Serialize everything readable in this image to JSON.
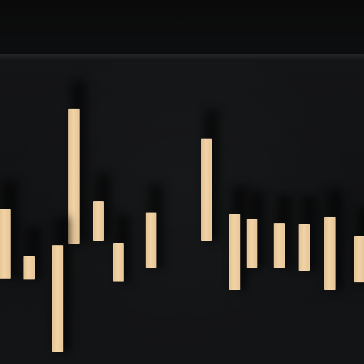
{
  "view": {
    "name": "waveform-bars-view",
    "background_color": "#121314",
    "bar_color": "#efd0a2"
  },
  "bars": [
    {
      "id": "bar-1",
      "top": 0.77,
      "bottom": -0.86
    },
    {
      "id": "bar-2",
      "top": -0.34,
      "bottom": -0.88
    },
    {
      "id": "bar-3",
      "top": 3.12,
      "bottom": -0.05
    },
    {
      "id": "bar-4",
      "top": -0.08,
      "bottom": -2.58
    },
    {
      "id": "bar-5",
      "top": 0.95,
      "bottom": 0.02
    },
    {
      "id": "bar-6",
      "top": -0.04,
      "bottom": -0.93
    },
    {
      "id": "bar-7",
      "top": 0.68,
      "bottom": -0.62
    },
    {
      "id": "bar-8",
      "top": 2.42,
      "bottom": 0.01
    },
    {
      "id": "bar-9",
      "top": 0.65,
      "bottom": -1.14
    },
    {
      "id": "bar-10",
      "top": 0.53,
      "bottom": -0.62
    },
    {
      "id": "bar-11",
      "top": 0.44,
      "bottom": -0.61
    },
    {
      "id": "bar-12",
      "top": 0.42,
      "bottom": -0.68
    },
    {
      "id": "bar-13",
      "top": 0.59,
      "bottom": -1.13
    },
    {
      "id": "bar-14",
      "top": 0.14,
      "bottom": -0.95
    }
  ]
}
